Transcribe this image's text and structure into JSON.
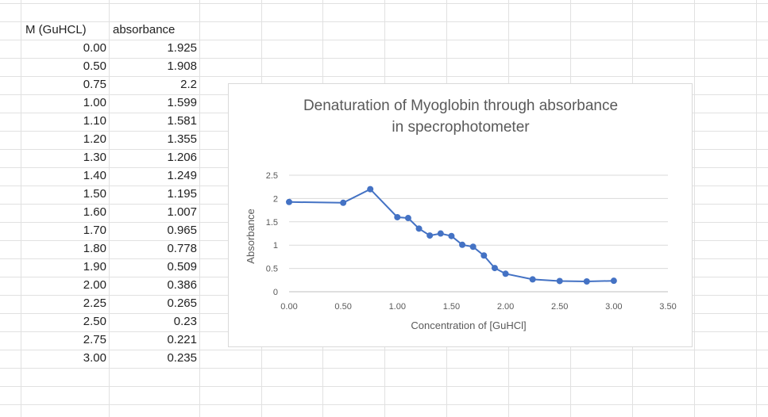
{
  "sheet": {
    "headers": {
      "col_a": "M (GuHCL)",
      "col_b": "absorbance"
    },
    "rows": [
      {
        "m": "0.00",
        "abs": "1.925"
      },
      {
        "m": "0.50",
        "abs": "1.908"
      },
      {
        "m": "0.75",
        "abs": "2.2"
      },
      {
        "m": "1.00",
        "abs": "1.599"
      },
      {
        "m": "1.10",
        "abs": "1.581"
      },
      {
        "m": "1.20",
        "abs": "1.355"
      },
      {
        "m": "1.30",
        "abs": "1.206"
      },
      {
        "m": "1.40",
        "abs": "1.249"
      },
      {
        "m": "1.50",
        "abs": "1.195"
      },
      {
        "m": "1.60",
        "abs": "1.007"
      },
      {
        "m": "1.70",
        "abs": "0.965"
      },
      {
        "m": "1.80",
        "abs": "0.778"
      },
      {
        "m": "1.90",
        "abs": "0.509"
      },
      {
        "m": "2.00",
        "abs": "0.386"
      },
      {
        "m": "2.25",
        "abs": "0.265"
      },
      {
        "m": "2.50",
        "abs": "0.23"
      },
      {
        "m": "2.75",
        "abs": "0.221"
      },
      {
        "m": "3.00",
        "abs": "0.235"
      }
    ]
  },
  "chart_data": {
    "type": "scatter",
    "title_line1": "Denaturation of Myoglobin through absorbance",
    "title_line2": "in specrophotometer",
    "xlabel": "Concentration of [GuHCl]",
    "ylabel": "Absorbance",
    "xlim": [
      0,
      3.5
    ],
    "ylim": [
      0,
      2.5
    ],
    "x_ticks": [
      "0.00",
      "0.50",
      "1.00",
      "1.50",
      "2.00",
      "2.50",
      "3.00",
      "3.50"
    ],
    "y_ticks": [
      "0",
      "0.5",
      "1",
      "1.5",
      "2",
      "2.5"
    ],
    "grid": true,
    "line_color": "#4472c4",
    "series": [
      {
        "x": [
          0,
          0.5,
          0.75,
          1.0,
          1.1,
          1.2,
          1.3,
          1.4,
          1.5,
          1.6,
          1.7,
          1.8,
          1.9,
          2.0,
          2.25,
          2.5,
          2.75,
          3.0
        ],
        "y": [
          1.925,
          1.908,
          2.2,
          1.599,
          1.581,
          1.355,
          1.206,
          1.249,
          1.195,
          1.007,
          0.965,
          0.778,
          0.509,
          0.386,
          0.265,
          0.23,
          0.221,
          0.235
        ]
      }
    ]
  }
}
